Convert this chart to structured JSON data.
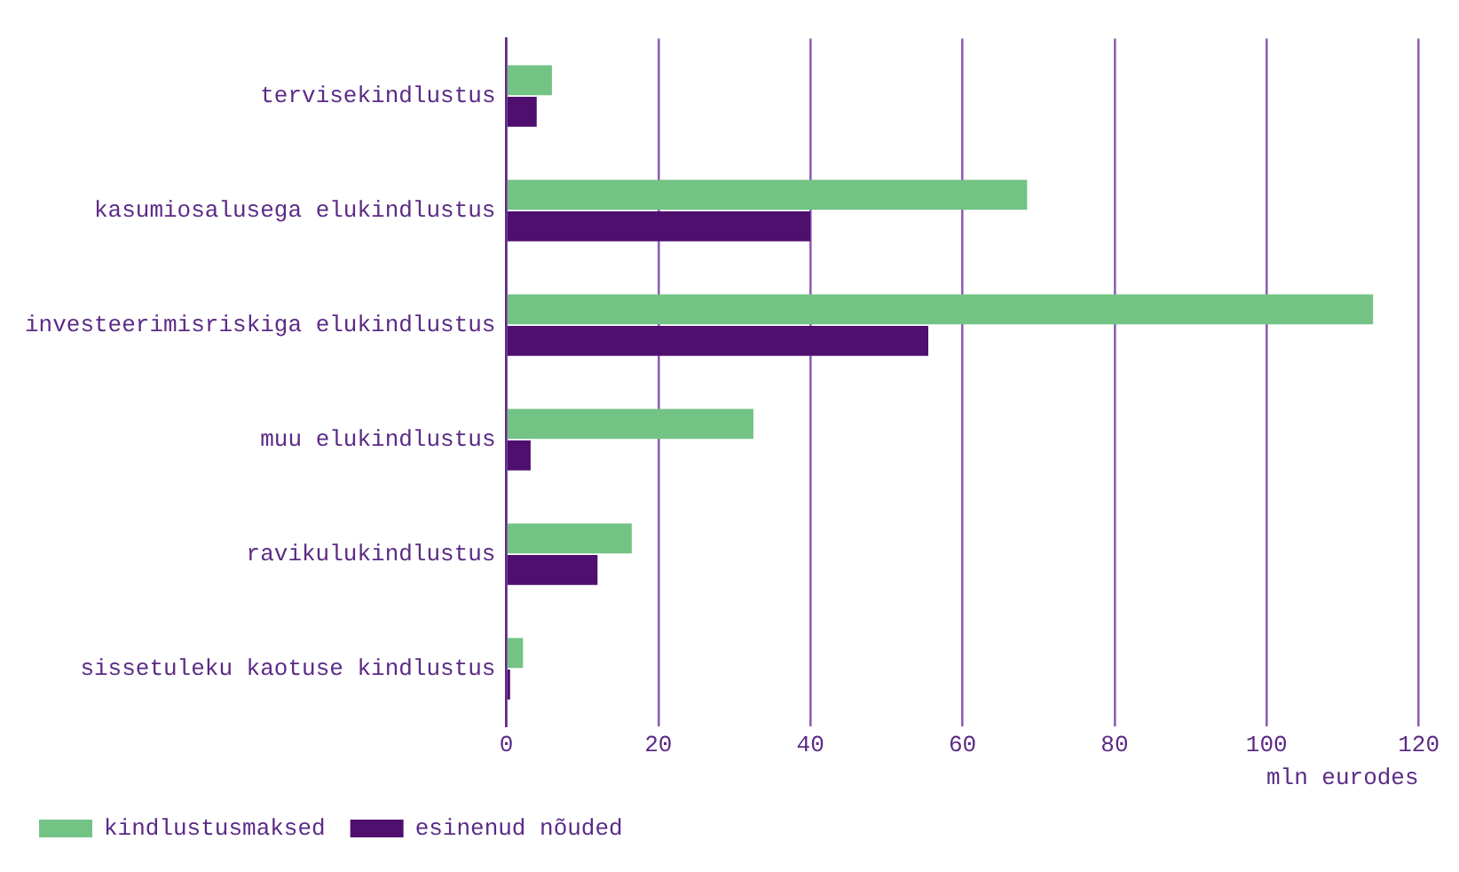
{
  "chart_data": {
    "type": "bar",
    "orientation": "horizontal",
    "xlabel": "mln eurodes",
    "categories": [
      "tervisekindlustus",
      "kasumiosalusega elukindlustus",
      "investeerimisriskiga elukindlustus",
      "muu elukindlustus",
      "ravikulukindlustus",
      "sissetuleku kaotuse kindlustus"
    ],
    "series": [
      {
        "name": "kindlustusmaksed",
        "color": "#73c385",
        "values": [
          6,
          68.5,
          114,
          32.5,
          16.5,
          2.2
        ]
      },
      {
        "name": "esinenud nõuded",
        "color": "#4f0f6f",
        "values": [
          4,
          40,
          55.5,
          3.2,
          12,
          0.5
        ]
      }
    ],
    "xlim": [
      0,
      120
    ],
    "xticks": [
      0,
      20,
      40,
      60,
      80,
      100,
      120
    ],
    "grid": "x",
    "legend": "bottom left"
  }
}
